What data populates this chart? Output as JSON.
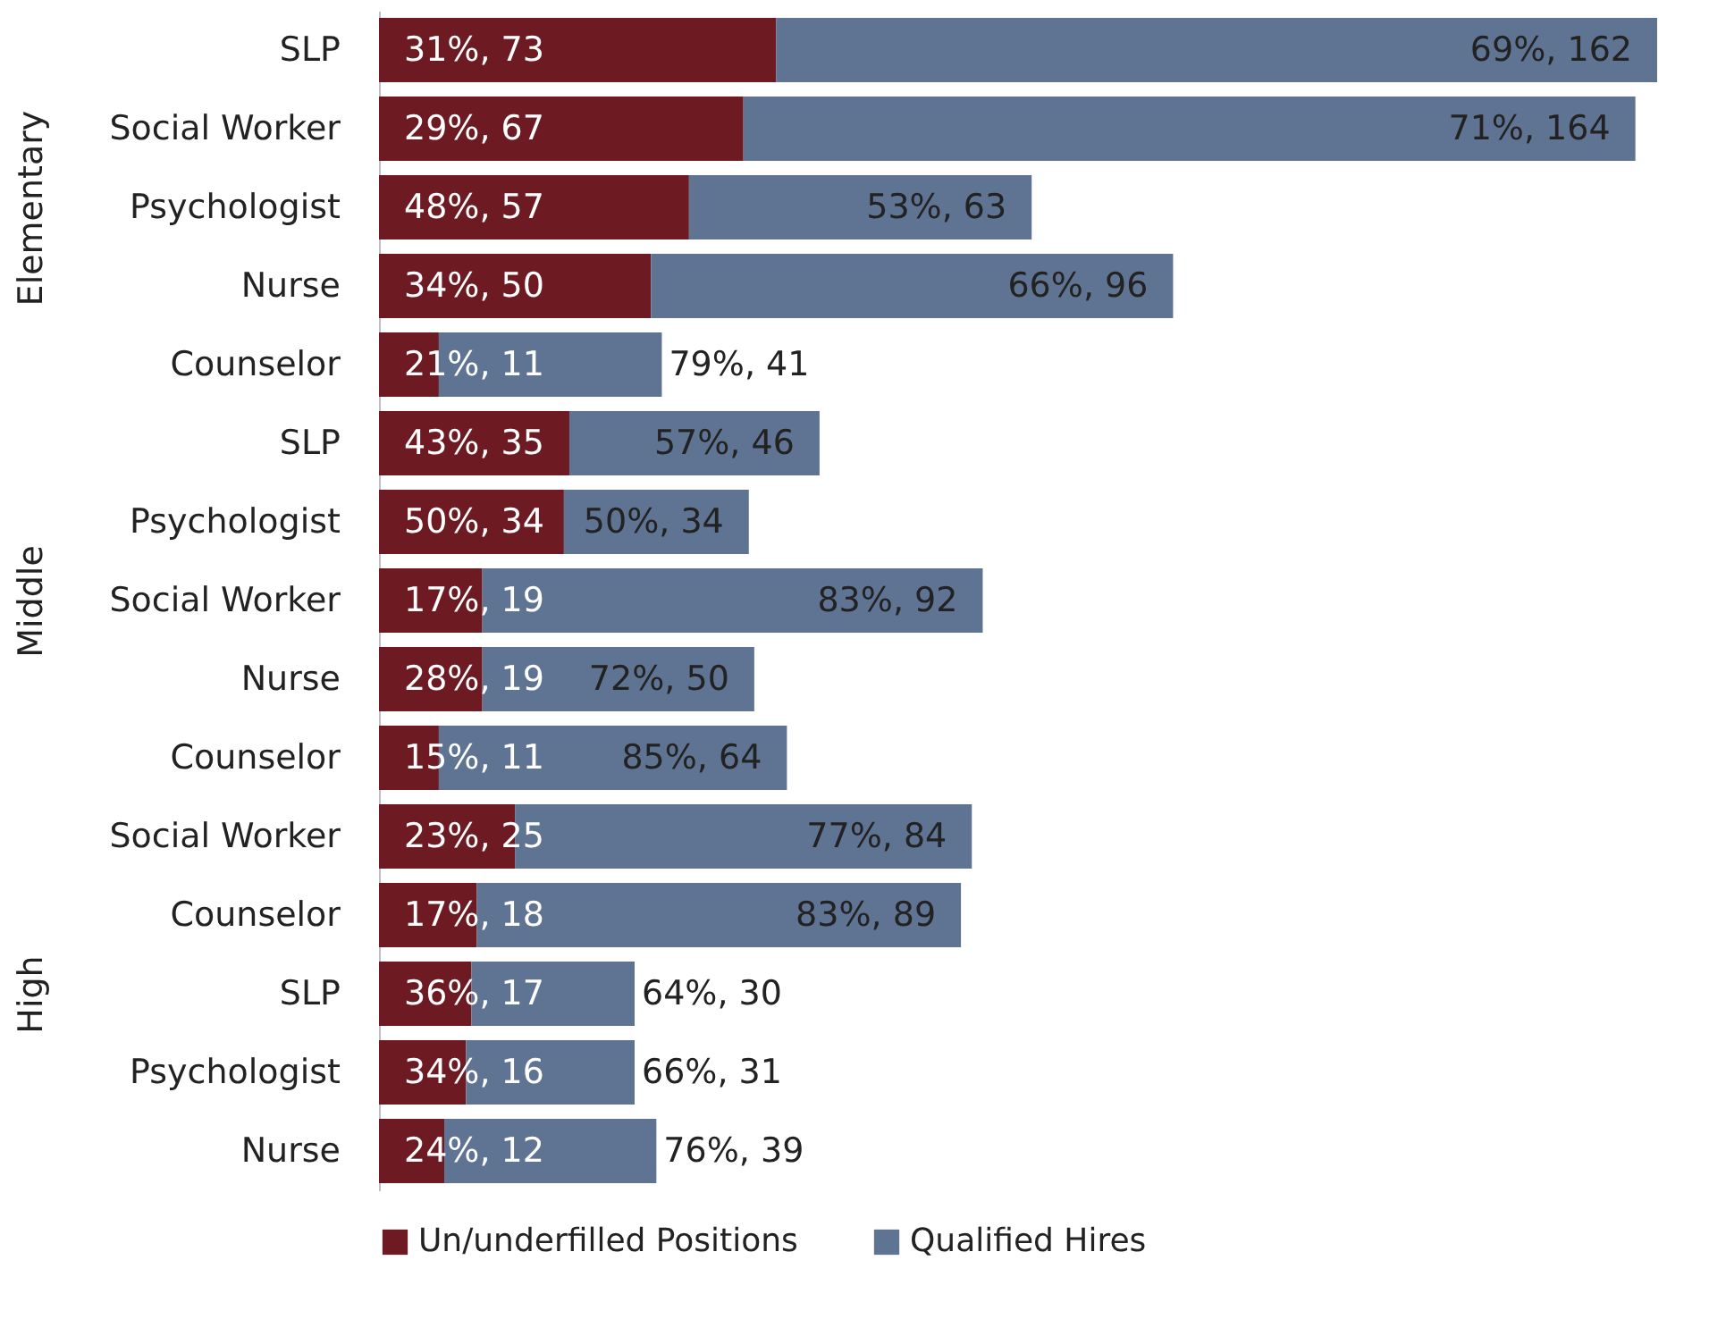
{
  "chart_data": [
    {
      "type": "bar",
      "orientation": "horizontal",
      "stacked": true,
      "ylabel": "Elementary",
      "categories": [
        "SLP",
        "Social Worker",
        "Psychologist",
        "Nurse",
        "Counselor"
      ],
      "series": [
        {
          "name": "Un/underfilled Positions",
          "color": "#6d1a23",
          "values": [
            73,
            67,
            57,
            50,
            11
          ],
          "value_labels": [
            "31%, 73",
            "29%, 67",
            "48%, 57",
            "34%, 50",
            "21%, 11"
          ]
        },
        {
          "name": "Qualified Hires",
          "color": "#5f7393",
          "values": [
            162,
            164,
            63,
            96,
            41
          ],
          "value_labels": [
            "69%, 162",
            "71%, 164",
            "53%, 63",
            "66%, 96",
            "79%, 41"
          ]
        }
      ],
      "legend": "bottom"
    },
    {
      "type": "bar",
      "orientation": "horizontal",
      "stacked": true,
      "ylabel": "Middle",
      "categories": [
        "SLP",
        "Psychologist",
        "Social Worker",
        "Nurse",
        "Counselor"
      ],
      "series": [
        {
          "name": "Un/underfilled Positions",
          "color": "#6d1a23",
          "values": [
            35,
            34,
            19,
            19,
            11
          ],
          "value_labels": [
            "43%, 35",
            "50%, 34",
            "17%, 19",
            "28%, 19",
            "15%, 11"
          ]
        },
        {
          "name": "Qualified Hires",
          "color": "#5f7393",
          "values": [
            46,
            34,
            92,
            50,
            64
          ],
          "value_labels": [
            "57%, 46",
            "50%, 34",
            "83%, 92",
            "72%, 50",
            "85%, 64"
          ]
        }
      ],
      "legend": "bottom"
    },
    {
      "type": "bar",
      "orientation": "horizontal",
      "stacked": true,
      "ylabel": "High",
      "categories": [
        "Social Worker",
        "Counselor",
        "SLP",
        "Psychologist",
        "Nurse"
      ],
      "series": [
        {
          "name": "Un/underfilled Positions",
          "color": "#6d1a23",
          "values": [
            25,
            18,
            17,
            16,
            12
          ],
          "value_labels": [
            "23%, 25",
            "17%, 18",
            "36%, 17",
            "34%, 16",
            "24%, 12"
          ]
        },
        {
          "name": "Qualified Hires",
          "color": "#5f7393",
          "values": [
            84,
            89,
            30,
            31,
            39
          ],
          "value_labels": [
            "77%, 84",
            "83%, 89",
            "64%, 30",
            "66%, 31",
            "76%, 39"
          ]
        }
      ],
      "legend": "bottom"
    }
  ]
}
